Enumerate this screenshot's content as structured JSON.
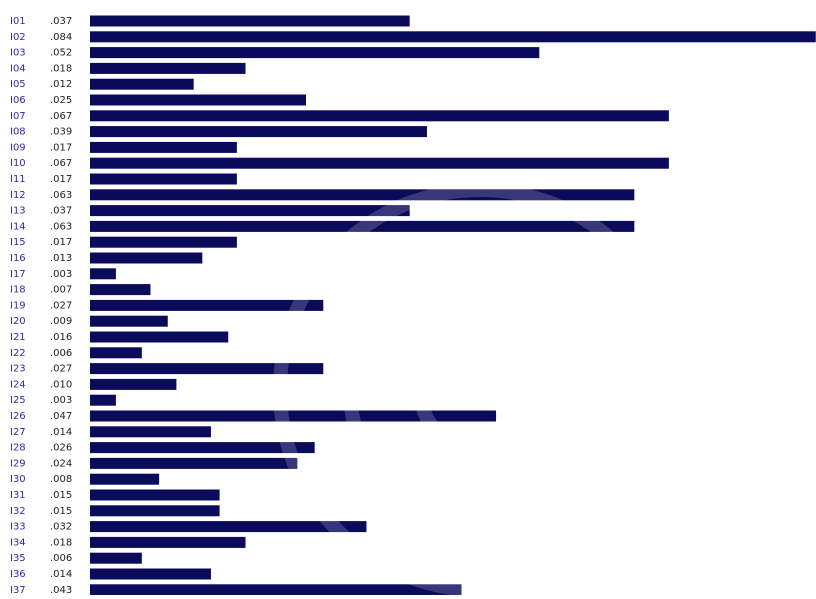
{
  "chart_data": {
    "type": "bar",
    "orientation": "horizontal",
    "color": "#0b0b5c",
    "categories": [
      "I01",
      "I02",
      "I03",
      "I04",
      "I05",
      "I06",
      "I07",
      "I08",
      "I09",
      "I10",
      "I11",
      "I12",
      "I13",
      "I14",
      "I15",
      "I16",
      "I17",
      "I18",
      "I19",
      "I20",
      "I21",
      "I22",
      "I23",
      "I24",
      "I25",
      "I26",
      "I27",
      "I28",
      "I29",
      "I30",
      "I31",
      "I32",
      "I33",
      "I34",
      "I35",
      "I36",
      "I37"
    ],
    "values": [
      0.037,
      0.084,
      0.052,
      0.018,
      0.012,
      0.025,
      0.067,
      0.039,
      0.017,
      0.067,
      0.017,
      0.063,
      0.037,
      0.063,
      0.017,
      0.013,
      0.003,
      0.007,
      0.027,
      0.009,
      0.016,
      0.006,
      0.027,
      0.01,
      0.003,
      0.047,
      0.014,
      0.026,
      0.024,
      0.008,
      0.015,
      0.015,
      0.032,
      0.018,
      0.006,
      0.014,
      0.043
    ],
    "value_labels": [
      ".037",
      ".084",
      ".052",
      ".018",
      ".012",
      ".025",
      ".067",
      ".039",
      ".017",
      ".067",
      ".017",
      ".063",
      ".037",
      ".063",
      ".017",
      ".013",
      ".003",
      ".007",
      ".027",
      ".009",
      ".016",
      ".006",
      ".027",
      ".010",
      ".003",
      ".047",
      ".014",
      ".026",
      ".024",
      ".008",
      ".015",
      ".015",
      ".032",
      ".018",
      ".006",
      ".014",
      ".043"
    ]
  }
}
